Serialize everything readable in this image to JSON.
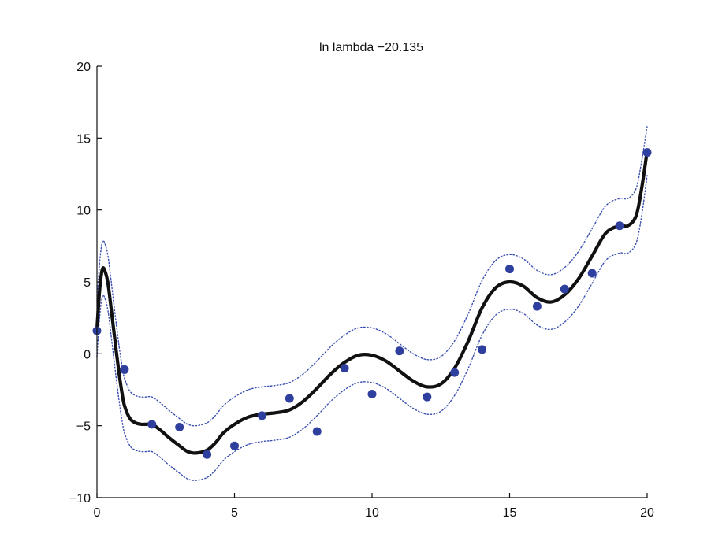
{
  "chart_data": {
    "type": "line",
    "title": "ln lambda −20.135",
    "xlabel": "",
    "ylabel": "",
    "xlim": [
      0,
      20
    ],
    "ylim": [
      -10,
      20
    ],
    "x_ticks": [
      0,
      5,
      10,
      15,
      20
    ],
    "x_tick_labels": [
      "0",
      "5",
      "10",
      "15",
      "20"
    ],
    "y_ticks": [
      -10,
      -5,
      0,
      5,
      10,
      15,
      20
    ],
    "y_tick_labels": [
      "−10",
      "−5",
      "0",
      "5",
      "10",
      "15",
      "20"
    ],
    "grid": false,
    "legend": "none",
    "points": {
      "x": [
        0,
        1,
        2,
        3,
        4,
        5,
        6,
        7,
        8,
        9,
        10,
        11,
        12,
        13,
        14,
        15,
        16,
        17,
        18,
        19,
        20
      ],
      "y": [
        1.6,
        -1.1,
        -4.9,
        -5.1,
        -7.0,
        -6.4,
        -4.3,
        -3.1,
        -5.4,
        -1.0,
        -2.8,
        0.2,
        -3.0,
        -1.3,
        0.3,
        5.9,
        3.3,
        4.5,
        5.6,
        8.9,
        14.0
      ],
      "color": "#2e3f9e"
    },
    "fit_curve": {
      "x": [
        0,
        0.1,
        0.2,
        0.3,
        0.4,
        0.5,
        0.6,
        0.7,
        0.8,
        0.9,
        1.0,
        1.2,
        1.4,
        1.6,
        1.8,
        2.0,
        2.3,
        2.6,
        3.0,
        3.3,
        3.6,
        4.0,
        4.3,
        4.6,
        5.0,
        5.5,
        6.0,
        6.5,
        7.0,
        7.5,
        8.0,
        8.5,
        9.0,
        9.5,
        10.0,
        10.5,
        11.0,
        11.5,
        12.0,
        12.5,
        13.0,
        13.5,
        14.0,
        14.5,
        15.0,
        15.5,
        16.0,
        16.5,
        17.0,
        17.5,
        18.0,
        18.5,
        19.0,
        19.3,
        19.6,
        19.8,
        20.0
      ],
      "y": [
        1.7,
        4.5,
        5.9,
        5.7,
        4.9,
        3.4,
        1.8,
        0.2,
        -1.3,
        -2.6,
        -3.6,
        -4.5,
        -4.8,
        -4.9,
        -4.9,
        -4.9,
        -5.3,
        -5.8,
        -6.4,
        -6.8,
        -6.9,
        -6.7,
        -6.2,
        -5.5,
        -4.9,
        -4.4,
        -4.2,
        -4.1,
        -3.9,
        -3.3,
        -2.4,
        -1.4,
        -0.6,
        -0.1,
        -0.1,
        -0.5,
        -1.2,
        -1.9,
        -2.3,
        -2.1,
        -1.0,
        0.9,
        3.2,
        4.6,
        5.0,
        4.7,
        3.9,
        3.6,
        4.1,
        5.2,
        6.8,
        8.4,
        8.9,
        8.9,
        9.6,
        11.5,
        14.1
      ],
      "color": "#111111"
    },
    "upper_band": {
      "x": [
        0,
        0.1,
        0.2,
        0.3,
        0.4,
        0.5,
        0.6,
        0.7,
        0.8,
        0.9,
        1.0,
        1.2,
        1.4,
        1.6,
        1.8,
        2.0,
        2.3,
        2.6,
        3.0,
        3.3,
        3.6,
        4.0,
        4.3,
        4.6,
        5.0,
        5.5,
        6.0,
        6.5,
        7.0,
        7.5,
        8.0,
        8.5,
        9.0,
        9.5,
        10.0,
        10.5,
        11.0,
        11.5,
        12.0,
        12.5,
        13.0,
        13.5,
        14.0,
        14.5,
        15.0,
        15.5,
        16.0,
        16.5,
        17.0,
        17.5,
        18.0,
        18.5,
        19.0,
        19.3,
        19.6,
        19.8,
        20.0
      ],
      "y": [
        3.6,
        6.4,
        7.8,
        7.6,
        6.8,
        5.3,
        3.7,
        2.1,
        0.6,
        -0.7,
        -1.7,
        -2.6,
        -2.9,
        -3.0,
        -3.0,
        -3.0,
        -3.4,
        -3.9,
        -4.5,
        -4.9,
        -5.0,
        -4.8,
        -4.3,
        -3.6,
        -3.0,
        -2.5,
        -2.3,
        -2.2,
        -2.0,
        -1.4,
        -0.5,
        0.5,
        1.3,
        1.8,
        1.8,
        1.4,
        0.7,
        0.0,
        -0.4,
        -0.2,
        0.9,
        2.8,
        5.1,
        6.5,
        6.9,
        6.6,
        5.8,
        5.5,
        6.0,
        7.1,
        8.7,
        10.3,
        10.8,
        10.8,
        11.5,
        13.4,
        15.8
      ],
      "color": "#3b4fb0"
    },
    "lower_band": {
      "x": [
        0,
        0.1,
        0.2,
        0.3,
        0.4,
        0.5,
        0.6,
        0.7,
        0.8,
        0.9,
        1.0,
        1.2,
        1.4,
        1.6,
        1.8,
        2.0,
        2.3,
        2.6,
        3.0,
        3.3,
        3.6,
        4.0,
        4.3,
        4.6,
        5.0,
        5.5,
        6.0,
        6.5,
        7.0,
        7.5,
        8.0,
        8.5,
        9.0,
        9.5,
        10.0,
        10.5,
        11.0,
        11.5,
        12.0,
        12.5,
        13.0,
        13.5,
        14.0,
        14.5,
        15.0,
        15.5,
        16.0,
        16.5,
        17.0,
        17.5,
        18.0,
        18.5,
        19.0,
        19.3,
        19.6,
        19.8,
        20.0
      ],
      "y": [
        -0.2,
        2.6,
        4.0,
        3.8,
        3.0,
        1.5,
        -0.1,
        -1.7,
        -3.2,
        -4.5,
        -5.5,
        -6.4,
        -6.7,
        -6.8,
        -6.8,
        -6.8,
        -7.2,
        -7.7,
        -8.3,
        -8.7,
        -8.8,
        -8.6,
        -8.1,
        -7.4,
        -6.8,
        -6.3,
        -6.1,
        -6.0,
        -5.8,
        -5.2,
        -4.3,
        -3.3,
        -2.5,
        -2.0,
        -2.0,
        -2.4,
        -3.1,
        -3.8,
        -4.2,
        -4.0,
        -2.9,
        -1.0,
        1.3,
        2.7,
        3.1,
        2.8,
        2.0,
        1.7,
        2.2,
        3.3,
        4.9,
        6.5,
        7.0,
        7.0,
        7.7,
        9.6,
        12.4
      ],
      "color": "#3b4fb0"
    }
  }
}
